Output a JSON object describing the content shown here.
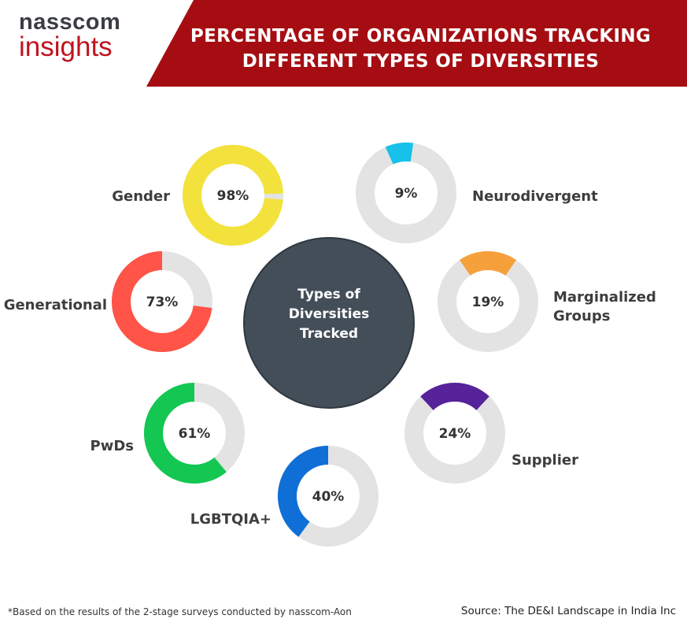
{
  "logo": {
    "line1": "nasscom",
    "line2": "insights"
  },
  "header": {
    "title_line1": "PERCENTAGE OF ORGANIZATIONS TRACKING",
    "title_line2": "DIFFERENT TYPES OF DIVERSITIES"
  },
  "center": {
    "lines": [
      "Types of",
      "Diversities",
      "Tracked"
    ]
  },
  "chart_data": {
    "type": "donut",
    "title": "PERCENTAGE OF ORGANIZATIONS TRACKING DIFFERENT TYPES OF DIVERSITIES",
    "unit": "%",
    "items": [
      {
        "name": "Gender",
        "value": 98,
        "label": "98%",
        "color": "#f3e23b"
      },
      {
        "name": "Neurodivergent",
        "value": 9,
        "label": "9%",
        "color": "#16c1ea"
      },
      {
        "name": "Generational",
        "value": 73,
        "label": "73%",
        "color": "#ff5447"
      },
      {
        "name": "Marginalized Groups",
        "value": 19,
        "label": "19%",
        "color": "#f6a03c",
        "label_lines": [
          "Marginalized",
          "Groups"
        ]
      },
      {
        "name": "PwDs",
        "value": 61,
        "label": "61%",
        "color": "#13c752"
      },
      {
        "name": "Supplier",
        "value": 24,
        "label": "24%",
        "color": "#56239a"
      },
      {
        "name": "LGBTQIA+",
        "value": 40,
        "label": "40%",
        "color": "#0f6fd6"
      }
    ],
    "remainder_color": "#e3e3e3",
    "center_color": "#434e59"
  },
  "footer": {
    "note": "*Based on the results of the 2-stage surveys conducted by nasscom-Aon",
    "source": "Source: The DE&I Landscape in India Inc"
  }
}
